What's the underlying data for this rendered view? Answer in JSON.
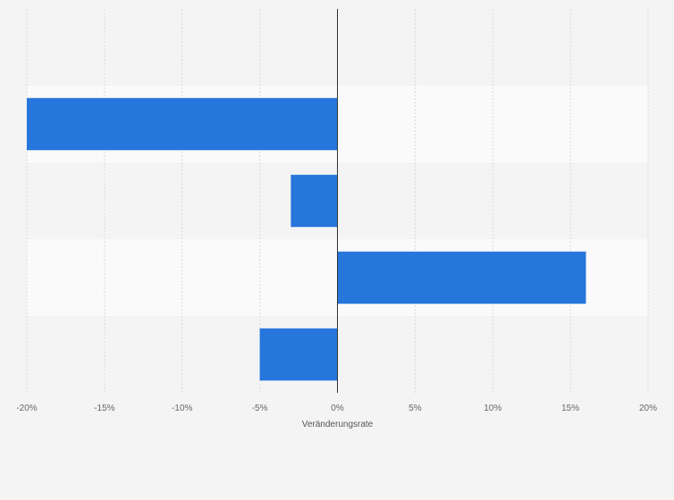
{
  "chart_data": {
    "type": "bar",
    "orientation": "horizontal",
    "categories": [
      "",
      "",
      "",
      "",
      ""
    ],
    "values": [
      0,
      -20,
      -3,
      16,
      -5
    ],
    "xlabel": "Veränderungsrate",
    "xlim": [
      -20,
      20
    ],
    "xticks": [
      {
        "value": -20,
        "label": "-20%"
      },
      {
        "value": -15,
        "label": "-15%"
      },
      {
        "value": -10,
        "label": "-10%"
      },
      {
        "value": -5,
        "label": "-5%"
      },
      {
        "value": 0,
        "label": "0%"
      },
      {
        "value": 5,
        "label": "5%"
      },
      {
        "value": 10,
        "label": "10%"
      },
      {
        "value": 15,
        "label": "15%"
      },
      {
        "value": 20,
        "label": "20%"
      }
    ],
    "grid": true,
    "colors": {
      "bar": "#2676dc",
      "band_light": "#fafafa",
      "band_dark": "#f4f4f4",
      "grid": "#d9d9d9",
      "zero_line": "#333333"
    }
  }
}
